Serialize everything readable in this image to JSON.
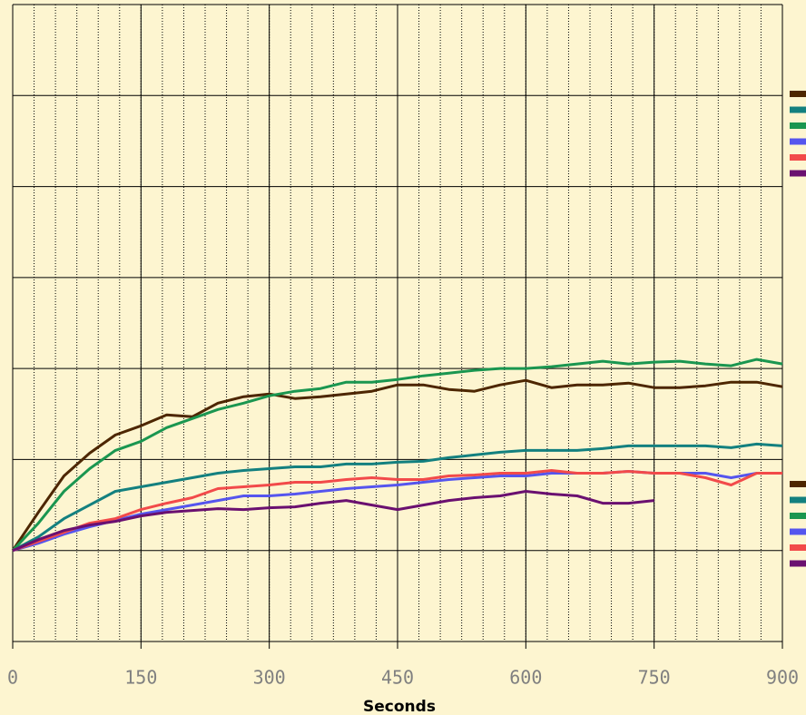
{
  "chart_data": {
    "type": "line",
    "xlabel": "Seconds",
    "x": [
      0,
      30,
      60,
      90,
      120,
      150,
      180,
      210,
      240,
      270,
      300,
      330,
      360,
      390,
      420,
      450,
      480,
      510,
      540,
      570,
      600,
      630,
      660,
      690,
      720,
      750,
      780,
      810,
      840,
      870,
      900
    ],
    "xlim": [
      0,
      900
    ],
    "xticks": [
      0,
      150,
      300,
      450,
      600,
      750,
      900
    ],
    "minor_grid_step": 25,
    "ylim": [
      -1,
      6
    ],
    "ygrid_values": [
      -1,
      0,
      1,
      2,
      3,
      4,
      5,
      6
    ],
    "grid": true,
    "series": [
      {
        "color": "#4d2600",
        "values": [
          0,
          0.42,
          0.82,
          1.07,
          1.27,
          1.37,
          1.49,
          1.47,
          1.62,
          1.69,
          1.72,
          1.67,
          1.69,
          1.72,
          1.75,
          1.82,
          1.82,
          1.77,
          1.75,
          1.82,
          1.87,
          1.79,
          1.82,
          1.82,
          1.84,
          1.79,
          1.79,
          1.81,
          1.85,
          1.85,
          1.8
        ]
      },
      {
        "color": "#13807f",
        "values": [
          0,
          0.15,
          0.35,
          0.5,
          0.65,
          0.7,
          0.75,
          0.8,
          0.85,
          0.88,
          0.9,
          0.92,
          0.92,
          0.95,
          0.95,
          0.97,
          0.98,
          1.02,
          1.05,
          1.08,
          1.1,
          1.1,
          1.1,
          1.12,
          1.15,
          1.15,
          1.15,
          1.15,
          1.13,
          1.17,
          1.15
        ]
      },
      {
        "color": "#1a9650",
        "values": [
          0,
          0.3,
          0.65,
          0.9,
          1.1,
          1.2,
          1.35,
          1.45,
          1.55,
          1.62,
          1.7,
          1.75,
          1.78,
          1.85,
          1.85,
          1.88,
          1.92,
          1.95,
          1.98,
          2.0,
          2.0,
          2.02,
          2.05,
          2.08,
          2.05,
          2.07,
          2.08,
          2.05,
          2.03,
          2.1,
          2.05
        ]
      },
      {
        "color": "#5555ee",
        "values": [
          0,
          0.08,
          0.18,
          0.26,
          0.33,
          0.4,
          0.45,
          0.5,
          0.55,
          0.6,
          0.6,
          0.62,
          0.65,
          0.68,
          0.7,
          0.72,
          0.75,
          0.78,
          0.8,
          0.82,
          0.82,
          0.85,
          0.85,
          0.85,
          0.87,
          0.85,
          0.85,
          0.85,
          0.8,
          0.85,
          0.85
        ]
      },
      {
        "color": "#f24a4a",
        "values": [
          0,
          0.1,
          0.2,
          0.3,
          0.35,
          0.45,
          0.52,
          0.58,
          0.68,
          0.7,
          0.72,
          0.75,
          0.75,
          0.78,
          0.8,
          0.78,
          0.78,
          0.82,
          0.83,
          0.85,
          0.85,
          0.88,
          0.85,
          0.85,
          0.87,
          0.85,
          0.85,
          0.8,
          0.72,
          0.85,
          0.85
        ]
      },
      {
        "color": "#6a1070",
        "values": [
          0,
          0.12,
          0.22,
          0.28,
          0.32,
          0.38,
          0.42,
          0.44,
          0.46,
          0.45,
          0.47,
          0.48,
          0.52,
          0.55,
          0.5,
          0.45,
          0.5,
          0.55,
          0.58,
          0.6,
          0.65,
          0.62,
          0.6,
          0.52,
          0.52,
          0.55,
          null,
          null,
          null,
          null,
          null
        ]
      }
    ]
  }
}
